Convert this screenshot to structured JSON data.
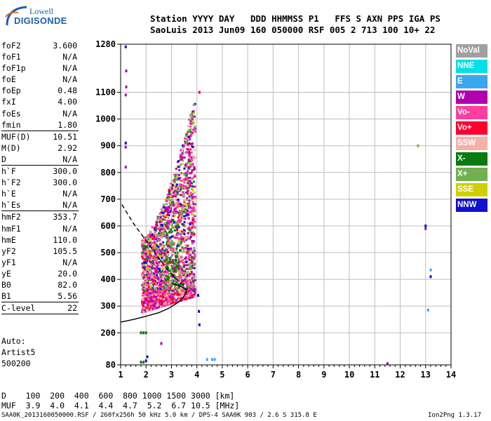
{
  "logo": {
    "line1": "Lowell",
    "line2": "DIGISONDE"
  },
  "header": {
    "line1": "Station YYYY DAY   DDD HHMMSS P1   FFS S AXN PPS IGA PS",
    "line2": "SaoLuis 2013 Jun09 160 050000 RSF 005 2 713 100 10+ 22"
  },
  "params": [
    {
      "label": "foF2",
      "value": "3.600"
    },
    {
      "label": "foF1",
      "value": "N/A"
    },
    {
      "label": "foF1p",
      "value": "N/A"
    },
    {
      "label": "foE",
      "value": "N/A"
    },
    {
      "label": "foEp",
      "value": "0.48"
    },
    {
      "label": "fxI",
      "value": "4.00"
    },
    {
      "label": "foEs",
      "value": "N/A"
    },
    {
      "label": "fmin",
      "value": "1.80"
    },
    {
      "sep": true
    },
    {
      "label": "MUF(D)",
      "value": "10.51"
    },
    {
      "label": "M(D)",
      "value": "2.92"
    },
    {
      "label": "D",
      "value": "N/A"
    },
    {
      "sep": true
    },
    {
      "label": "h`F",
      "value": "300.0"
    },
    {
      "label": "h`F2",
      "value": "300.0"
    },
    {
      "label": "h`E",
      "value": "N/A"
    },
    {
      "label": "h`Es",
      "value": "N/A"
    },
    {
      "sep": true
    },
    {
      "label": "hmF2",
      "value": "353.7"
    },
    {
      "label": "hmF1",
      "value": "N/A"
    },
    {
      "label": "hmE",
      "value": "110.0"
    },
    {
      "label": "yF2",
      "value": "105.5"
    },
    {
      "label": "yF1",
      "value": "N/A"
    },
    {
      "label": "yE",
      "value": "20.0"
    },
    {
      "label": "B0",
      "value": "82.0"
    },
    {
      "label": "B1",
      "value": "5.56"
    },
    {
      "sep": true
    },
    {
      "label": "C-level",
      "value": "22"
    },
    {
      "sep": true
    }
  ],
  "auto": {
    "line1": "Auto:",
    "line2": "Artist5",
    "line3": "500200"
  },
  "legend": [
    {
      "label": "NoVal",
      "color": "#a0a0a0"
    },
    {
      "label": "NNE",
      "color": "#00e0e8"
    },
    {
      "label": "E",
      "color": "#3aa6f0"
    },
    {
      "label": "W",
      "color": "#b000b0"
    },
    {
      "label": "Vo-",
      "color": "#ff3fa0"
    },
    {
      "label": "Vo+",
      "color": "#ff0030"
    },
    {
      "label": "SSW",
      "color": "#f5b0a8"
    },
    {
      "label": "X-",
      "color": "#087a10"
    },
    {
      "label": "X+",
      "color": "#70b050"
    },
    {
      "label": "SSE",
      "color": "#d0d000"
    },
    {
      "label": "NNW",
      "color": "#1010d0"
    }
  ],
  "chart_data": {
    "type": "scatter",
    "xlim": [
      1,
      14
    ],
    "ylim": [
      80,
      1280
    ],
    "x_ticks": [
      "1",
      "2",
      "3",
      "4",
      "5",
      "6",
      "7",
      "8",
      "9",
      "10",
      "11",
      "12",
      "13",
      "14"
    ],
    "y_ticks": [
      {
        "v": 80,
        "t": "80"
      },
      {
        "v": 200,
        "t": "200"
      },
      {
        "v": 300,
        "t": "300"
      },
      {
        "v": 400,
        "t": "400"
      },
      {
        "v": 500,
        "t": "500"
      },
      {
        "v": 600,
        "t": "600"
      },
      {
        "v": 700,
        "t": "700"
      },
      {
        "v": 800,
        "t": "800"
      },
      {
        "v": 900,
        "t": "900"
      },
      {
        "v": 1000,
        "t": "1000"
      },
      {
        "v": 1100,
        "t": "1100"
      },
      {
        "v": 1280,
        "t": "1280"
      }
    ],
    "grid": true,
    "profile_curve": [
      [
        1.0,
        240
      ],
      [
        1.5,
        250
      ],
      [
        2.0,
        262
      ],
      [
        2.5,
        275
      ],
      [
        2.9,
        292
      ],
      [
        3.2,
        310
      ],
      [
        3.4,
        325
      ],
      [
        3.55,
        345
      ],
      [
        3.6,
        354
      ],
      [
        3.55,
        362
      ],
      [
        3.4,
        372
      ],
      [
        3.2,
        380
      ],
      [
        3.0,
        385
      ]
    ],
    "dashed_curve": [
      [
        1.05,
        680
      ],
      [
        1.5,
        610
      ],
      [
        2.0,
        545
      ],
      [
        2.5,
        480
      ],
      [
        2.9,
        430
      ],
      [
        3.2,
        400
      ],
      [
        3.45,
        380
      ],
      [
        3.6,
        360
      ]
    ],
    "scatter_outliers": [
      {
        "x": 1.2,
        "y": 1270,
        "c": "#1010d0"
      },
      {
        "x": 1.22,
        "y": 1180,
        "c": "#b000b0"
      },
      {
        "x": 1.22,
        "y": 1120,
        "c": "#b000b0"
      },
      {
        "x": 1.2,
        "y": 1090,
        "c": "#b000b0"
      },
      {
        "x": 1.2,
        "y": 910,
        "c": "#1010d0"
      },
      {
        "x": 1.2,
        "y": 895,
        "c": "#b000b0"
      },
      {
        "x": 1.2,
        "y": 820,
        "c": "#b000b0"
      },
      {
        "x": 4.1,
        "y": 1100,
        "c": "#ff0030"
      },
      {
        "x": 4.05,
        "y": 340,
        "c": "#1010d0"
      },
      {
        "x": 4.08,
        "y": 280,
        "c": "#1010d0"
      },
      {
        "x": 4.1,
        "y": 230,
        "c": "#1010d0"
      },
      {
        "x": 13.0,
        "y": 600,
        "c": "#1010d0"
      },
      {
        "x": 13.0,
        "y": 590,
        "c": "#b000b0"
      },
      {
        "x": 13.2,
        "y": 435,
        "c": "#3aa6f0"
      },
      {
        "x": 13.2,
        "y": 410,
        "c": "#1010d0"
      },
      {
        "x": 13.1,
        "y": 285,
        "c": "#3aa6f0"
      },
      {
        "x": 12.7,
        "y": 900,
        "c": "#70b050"
      },
      {
        "x": 11.5,
        "y": 85,
        "c": "#b000b0"
      },
      {
        "x": 4.4,
        "y": 100,
        "c": "#3aa6f0"
      },
      {
        "x": 4.6,
        "y": 100,
        "c": "#3aa6f0"
      },
      {
        "x": 4.7,
        "y": 100,
        "c": "#3aa6f0"
      },
      {
        "x": 2.0,
        "y": 95,
        "c": "#1010d0"
      },
      {
        "x": 2.05,
        "y": 110,
        "c": "#1010d0"
      },
      {
        "x": 2.6,
        "y": 160,
        "c": "#b000b0"
      },
      {
        "x": 1.8,
        "y": 200,
        "c": "#087a10"
      },
      {
        "x": 1.9,
        "y": 200,
        "c": "#087a10"
      },
      {
        "x": 2.0,
        "y": 200,
        "c": "#087a10"
      },
      {
        "x": 1.8,
        "y": 90,
        "c": "#087a10"
      },
      {
        "x": 1.9,
        "y": 90,
        "c": "#087a10"
      }
    ]
  },
  "muf_table": {
    "line1": "D    100  200  400  600  800 1000 1500 3000 [km]",
    "line2": "MUF  3.9  4.0  4.1  4.4  4.7  5.2  6.7 10.5 [MHz]"
  },
  "footer": "SAA0K_2013160050000.RSF / 260fx256h 50 kHz 5.0 km / DPS-4 SAA0K 903 / 2.6 S 315.8 E",
  "footer_right": "Ion2Png 1.3.17"
}
